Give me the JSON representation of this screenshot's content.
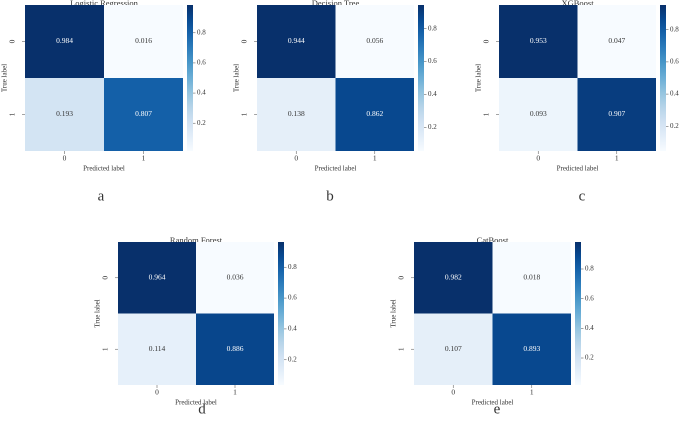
{
  "chart_data": [
    {
      "type": "heatmap",
      "title": "Logistic Regression",
      "panel_label": "a",
      "x_label": "Predicted label",
      "y_label": "True label",
      "x_categories": [
        "0",
        "1"
      ],
      "y_categories": [
        "0",
        "1"
      ],
      "values": [
        [
          0.984,
          0.016
        ],
        [
          0.193,
          0.807
        ]
      ],
      "colormap": "Blues",
      "zlim": [
        0.016,
        0.984
      ],
      "zticks": [
        0.2,
        0.4,
        0.6,
        0.8
      ]
    },
    {
      "type": "heatmap",
      "title": "Decision Tree",
      "panel_label": "b",
      "x_label": "Predicted label",
      "y_label": "True label",
      "x_categories": [
        "0",
        "1"
      ],
      "y_categories": [
        "0",
        "1"
      ],
      "values": [
        [
          0.944,
          0.056
        ],
        [
          0.138,
          0.862
        ]
      ],
      "colormap": "Blues",
      "zlim": [
        0.056,
        0.944
      ],
      "zticks": [
        0.2,
        0.4,
        0.6,
        0.8
      ]
    },
    {
      "type": "heatmap",
      "title": "XGBoost",
      "panel_label": "c",
      "x_label": "Predicted label",
      "y_label": "True label",
      "x_categories": [
        "0",
        "1"
      ],
      "y_categories": [
        "0",
        "1"
      ],
      "values": [
        [
          0.953,
          0.047
        ],
        [
          0.093,
          0.907
        ]
      ],
      "colormap": "Blues",
      "zlim": [
        0.047,
        0.953
      ],
      "zticks": [
        0.2,
        0.4,
        0.6,
        0.8
      ]
    },
    {
      "type": "heatmap",
      "title": "Random Forest",
      "panel_label": "d",
      "x_label": "Predicted label",
      "y_label": "True label",
      "x_categories": [
        "0",
        "1"
      ],
      "y_categories": [
        "0",
        "1"
      ],
      "values": [
        [
          0.964,
          0.036
        ],
        [
          0.114,
          0.886
        ]
      ],
      "colormap": "Blues",
      "zlim": [
        0.036,
        0.964
      ],
      "zticks": [
        0.2,
        0.4,
        0.6,
        0.8
      ]
    },
    {
      "type": "heatmap",
      "title": "CatBoost",
      "panel_label": "e",
      "x_label": "Predicted label",
      "y_label": "True label",
      "x_categories": [
        "0",
        "1"
      ],
      "y_categories": [
        "0",
        "1"
      ],
      "values": [
        [
          0.982,
          0.018
        ],
        [
          0.107,
          0.893
        ]
      ],
      "colormap": "Blues",
      "zlim": [
        0.018,
        0.982
      ],
      "zticks": [
        0.2,
        0.4,
        0.6,
        0.8
      ]
    }
  ]
}
